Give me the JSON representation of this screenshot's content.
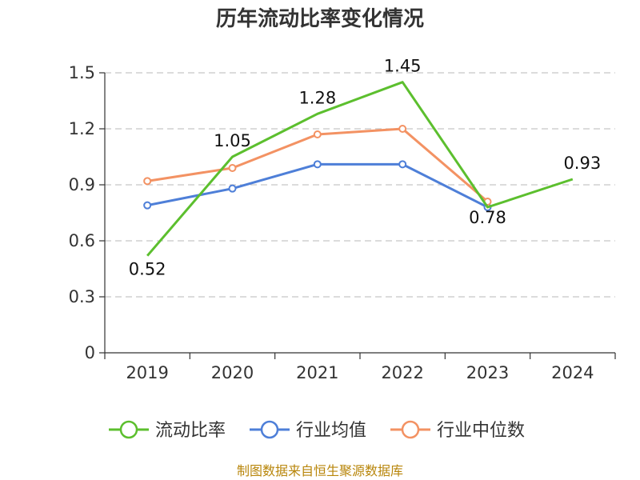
{
  "chart_data": {
    "type": "line",
    "title": "历年流动比率变化情况",
    "xlabel": "",
    "ylabel": "",
    "categories": [
      "2019",
      "2020",
      "2021",
      "2022",
      "2023",
      "2024"
    ],
    "ylim": [
      0,
      1.5
    ],
    "yticks": [
      "0",
      "0.3",
      "0.6",
      "0.9",
      "1.2",
      "1.5"
    ],
    "ytick_values": [
      0,
      0.3,
      0.6,
      0.9,
      1.2,
      1.5
    ],
    "grid": true,
    "legend_position": "bottom",
    "series": [
      {
        "name": "流动比率",
        "color": "#5cbf2e",
        "values": [
          0.52,
          1.05,
          1.28,
          1.45,
          0.78,
          0.93
        ],
        "labels": [
          "0.52",
          "1.05",
          "1.28",
          "1.45",
          "0.78",
          "0.93"
        ]
      },
      {
        "name": "行业均值",
        "color": "#4e7fd8",
        "values": [
          0.79,
          0.88,
          1.01,
          1.01,
          0.78,
          null
        ]
      },
      {
        "name": "行业中位数",
        "color": "#f39263",
        "values": [
          0.92,
          0.99,
          1.17,
          1.2,
          0.81,
          null
        ]
      }
    ]
  },
  "source_text": "制图数据来自恒生聚源数据库"
}
